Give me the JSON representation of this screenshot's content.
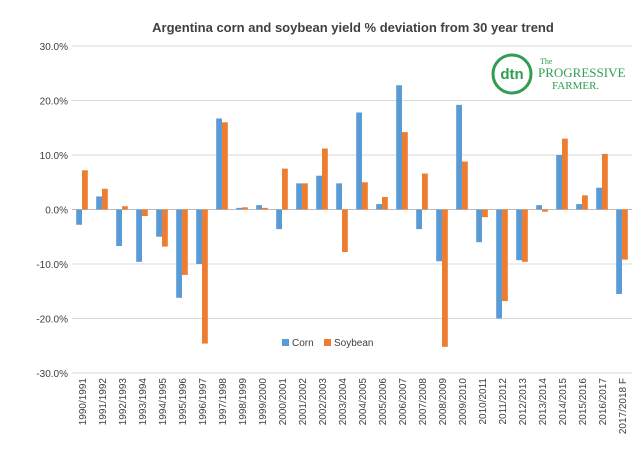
{
  "chart_data": {
    "type": "bar",
    "title": "Argentina corn and soybean yield % deviation from 30 year trend",
    "xlabel": "",
    "ylabel": "",
    "ylim": [
      -30,
      30
    ],
    "yticks": [
      -30,
      -20,
      -10,
      0,
      10,
      20,
      30
    ],
    "ytick_labels": [
      "-30.0%",
      "-20.0%",
      "-10.0%",
      "0.0%",
      "10.0%",
      "20.0%",
      "30.0%"
    ],
    "grid": true,
    "legend": "bottom-center",
    "categories": [
      "1990/1991",
      "1991/1992",
      "1992/1993",
      "1993/1994",
      "1994/1995",
      "1995/1996",
      "1996/1997",
      "1997/1998",
      "1998/1999",
      "1999/2000",
      "2000/2001",
      "2001/2002",
      "2002/2003",
      "2003/2004",
      "2004/2005",
      "2005/2006",
      "2006/2007",
      "2007/2008",
      "2008/2009",
      "2009/2010",
      "2010/2011",
      "2011/2012",
      "2012/2013",
      "2013/2014",
      "2014/2015",
      "2015/2016",
      "2016/2017",
      "2017/2018 F"
    ],
    "series": [
      {
        "name": "Corn",
        "color": "#5B9BD5",
        "values": [
          -2.8,
          2.4,
          -6.7,
          -9.6,
          -5.0,
          -16.2,
          -10.0,
          16.7,
          0.3,
          0.8,
          -3.6,
          4.8,
          6.2,
          4.8,
          17.8,
          1.0,
          22.8,
          -3.6,
          -9.5,
          19.2,
          -6.0,
          -20.0,
          -9.3,
          0.8,
          10.0,
          1.0,
          4.0,
          -15.5
        ]
      },
      {
        "name": "Soybean",
        "color": "#ED7D31",
        "values": [
          7.2,
          3.8,
          0.6,
          -1.2,
          -6.8,
          -12.0,
          -24.6,
          16.0,
          0.4,
          0.3,
          7.5,
          4.8,
          11.2,
          -7.8,
          5.0,
          2.3,
          14.2,
          6.6,
          -25.2,
          8.8,
          -1.4,
          -16.8,
          -9.6,
          -0.4,
          13.0,
          2.6,
          10.2,
          -9.2
        ]
      }
    ]
  },
  "logo": {
    "name": "dtn / The Progressive Farmer",
    "dtn_text": "dtn",
    "the_text": "The",
    "progressive_text": "PROGRESSIVE",
    "farmer_text": "FARMER."
  }
}
